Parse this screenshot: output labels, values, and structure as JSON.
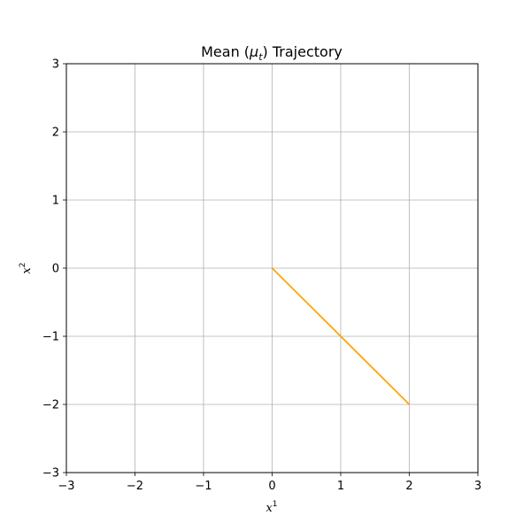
{
  "chart_data": {
    "type": "line",
    "title": {
      "prefix": "Mean (",
      "symbol": "μ",
      "subscript": "t",
      "suffix": ") Trajectory"
    },
    "xlabel": {
      "base": "x",
      "sup": "1"
    },
    "ylabel": {
      "base": "x",
      "sup": "2"
    },
    "xlim": [
      -3,
      3
    ],
    "ylim": [
      -3,
      3
    ],
    "xticks": [
      -3,
      -2,
      -1,
      0,
      1,
      2,
      3
    ],
    "yticks": [
      -3,
      -2,
      -1,
      0,
      1,
      2,
      3
    ],
    "xtick_labels": [
      "−3",
      "−2",
      "−1",
      "0",
      "1",
      "2",
      "3"
    ],
    "ytick_labels": [
      "−3",
      "−2",
      "−1",
      "0",
      "1",
      "2",
      "3"
    ],
    "grid": true,
    "series": [
      {
        "color": "#ffa500",
        "x": [
          0,
          2
        ],
        "y": [
          0,
          -2
        ]
      }
    ]
  }
}
